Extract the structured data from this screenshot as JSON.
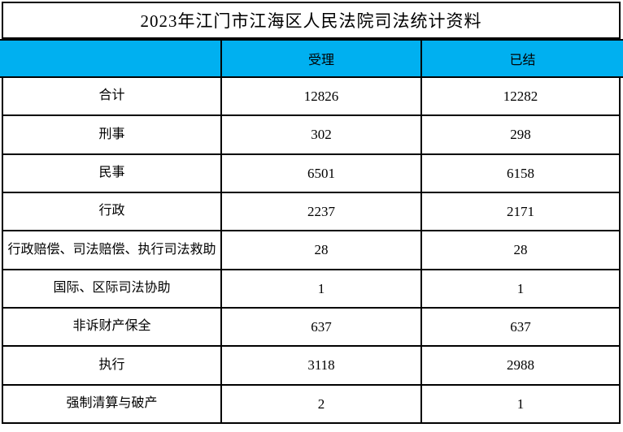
{
  "chart_data": {
    "type": "table",
    "title": "2023年江门市江海区人民法院司法统计资料",
    "columns": [
      "",
      "受理",
      "已结"
    ],
    "rows": [
      [
        "合计",
        "12826",
        "12282"
      ],
      [
        "刑事",
        "302",
        "298"
      ],
      [
        "民事",
        "6501",
        "6158"
      ],
      [
        "行政",
        "2237",
        "2171"
      ],
      [
        "行政赔偿、司法赔偿、执行司法救助",
        "28",
        "28"
      ],
      [
        "国际、区际司法协助",
        "1",
        "1"
      ],
      [
        "非诉财产保全",
        "637",
        "637"
      ],
      [
        "执行",
        "3118",
        "2988"
      ],
      [
        "强制清算与破产",
        "2",
        "1"
      ]
    ],
    "layout": {
      "header_bg": "#00B0F0",
      "header_text_color": "#000000",
      "border_color": "#000000",
      "grid": true
    }
  }
}
